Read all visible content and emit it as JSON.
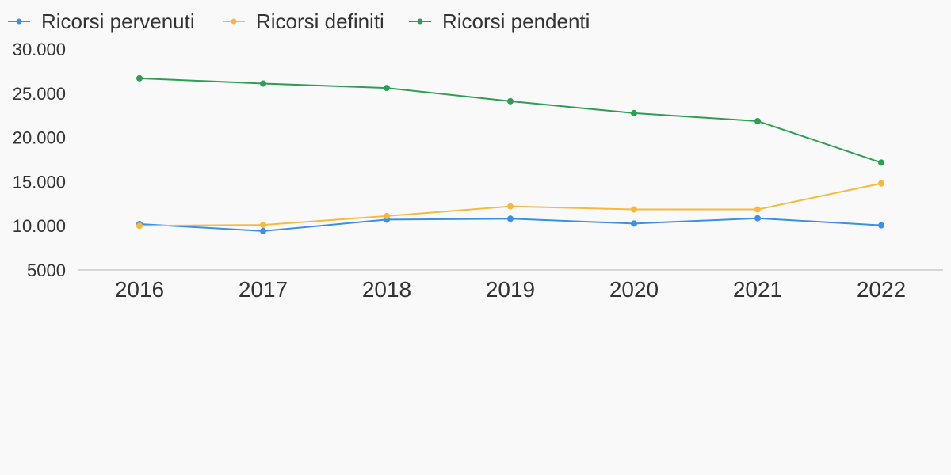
{
  "chart_data": {
    "type": "line",
    "categories": [
      "2016",
      "2017",
      "2018",
      "2019",
      "2020",
      "2021",
      "2022"
    ],
    "series": [
      {
        "name": "Ricorsi pervenuti",
        "color": "#3d8fe0",
        "values": [
          10200,
          9400,
          10700,
          10800,
          10250,
          10850,
          10050
        ]
      },
      {
        "name": "Ricorsi definiti",
        "color": "#f5b942",
        "values": [
          10000,
          10100,
          11100,
          12200,
          11850,
          11850,
          14800
        ]
      },
      {
        "name": "Ricorsi pendenti",
        "color": "#2f9e55",
        "values": [
          26700,
          26100,
          25600,
          24100,
          22750,
          21850,
          17150
        ]
      }
    ],
    "y_ticks": [
      "5000",
      "10.000",
      "15.000",
      "20.000",
      "25.000",
      "30.000"
    ],
    "ylim": [
      5000,
      30000
    ],
    "legend_position": "top-left",
    "grid": false
  }
}
